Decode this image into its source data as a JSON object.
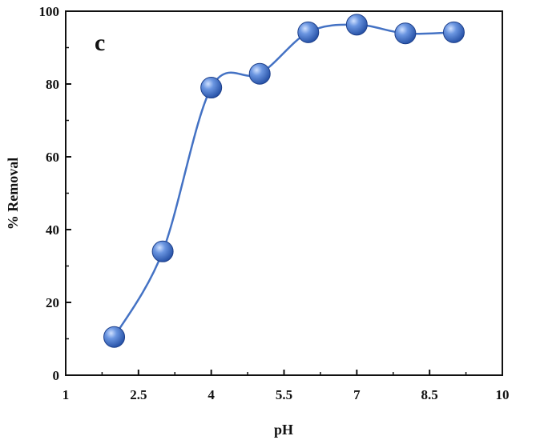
{
  "chart_data": {
    "type": "line",
    "panel_label": "c",
    "xlabel": "pH",
    "ylabel": "% Removal",
    "xlim": [
      1,
      10
    ],
    "ylim": [
      0,
      100
    ],
    "x_ticks": [
      "1",
      "2.5",
      "4",
      "5.5",
      "7",
      "8.5",
      "10"
    ],
    "y_ticks": [
      "0",
      "20",
      "40",
      "60",
      "80",
      "100"
    ],
    "smooth": true,
    "grid": false,
    "series": [
      {
        "x": [
          2,
          3,
          4,
          5,
          6,
          7,
          8,
          9
        ],
        "y": [
          10.5,
          34,
          79,
          82.8,
          94.2,
          96.3,
          93.9,
          94.2
        ]
      }
    ],
    "colors": {
      "line": "#4472C4",
      "marker": "#3a63b8",
      "axis": "#111111"
    }
  }
}
